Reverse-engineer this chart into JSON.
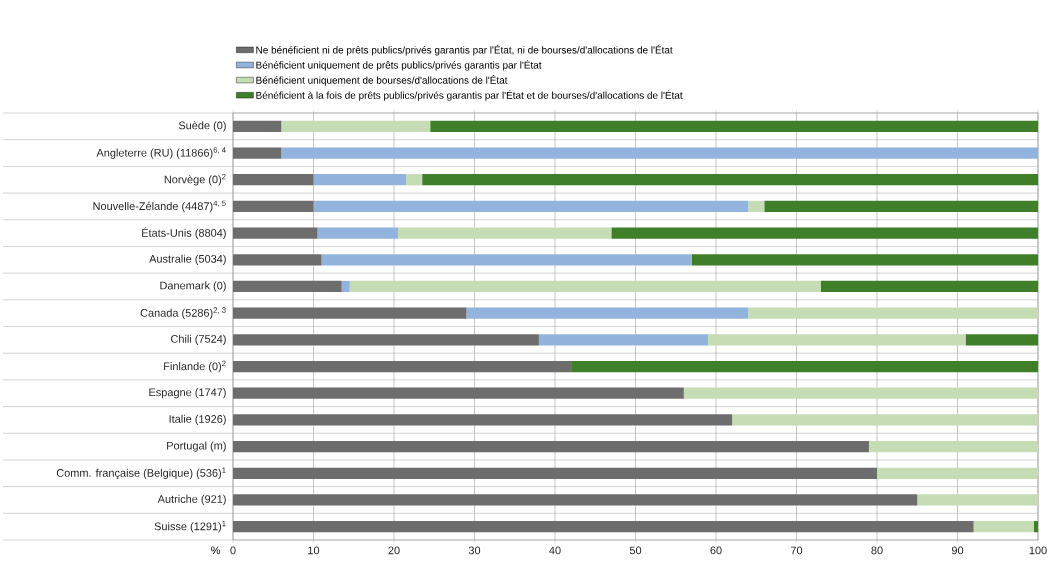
{
  "chart_data": {
    "type": "bar",
    "orientation": "horizontal",
    "stacked": true,
    "xlabel": "%",
    "categories": [
      "Suède (0)",
      "Angleterre (RU) (11866)$^{6, 4}$",
      "Norvège (0)$^{2}$",
      "Nouvelle-Zélande (4487)$^{4, 5}$",
      "États-Unis (8804)",
      "Australie (5034)",
      "Danemark (0)",
      "Canada (5286)$^{2, 3}$",
      "Chili (7524)",
      "Finlande (0)$^{2}$",
      "Espagne (1747)",
      "Italie (1926)",
      "Portugal (m)",
      "Comm. française (Belgique) (536)$^{1}$",
      "Autriche (921)",
      "Suisse (1291)$^{1}$"
    ],
    "series": [
      {
        "name": "Ne bénéficient ni de prêts publics/privés garantis par l'État, ni de bourses/d'allocations de l'État",
        "color": "#6d6d6d",
        "values": [
          6,
          6,
          10,
          10,
          10.5,
          11,
          13.5,
          29,
          38,
          42,
          56,
          62,
          79,
          80,
          85,
          92
        ]
      },
      {
        "name": "Bénéficient uniquement de prêts publics/privés garantis par l'État",
        "color": "#92b4dc",
        "values": [
          0,
          94,
          11.5,
          54,
          10,
          46,
          1,
          35,
          21,
          0,
          0,
          0,
          0,
          0,
          0,
          0
        ]
      },
      {
        "name": "Bénéficient uniquement de bourses/d'allocations de l'État",
        "color": "#c6dcb4",
        "values": [
          18.5,
          0,
          2,
          2,
          26.5,
          0,
          58.5,
          36,
          32,
          0,
          44,
          38,
          21,
          20,
          15,
          7.5
        ]
      },
      {
        "name": "Bénéficient à la fois de prêts publics/privés garantis par l'État et de bourses/d'allocations de l'État",
        "color": "#3f7f2a",
        "values": [
          75.5,
          0,
          76.5,
          34,
          53,
          43,
          27,
          0,
          9,
          58,
          0,
          0,
          0,
          0,
          0,
          0.5
        ]
      }
    ],
    "xlim": [
      0,
      100
    ],
    "xticks": [
      0,
      10,
      20,
      30,
      40,
      50,
      60,
      70,
      80,
      90,
      100
    ],
    "grid": "x",
    "legend": "top"
  }
}
